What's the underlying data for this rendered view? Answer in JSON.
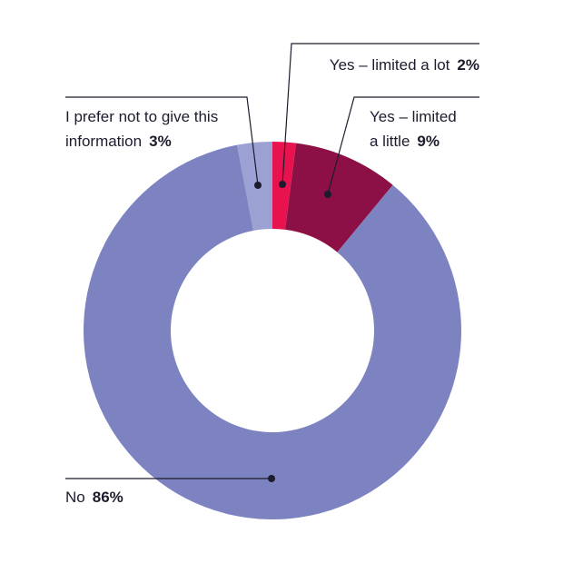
{
  "chart_data": {
    "type": "pie",
    "title": "",
    "donut": true,
    "legend": "none",
    "slices": [
      {
        "label": "Yes – limited a lot",
        "value": 2,
        "value_label": "2%",
        "color": "#e8124f"
      },
      {
        "label": "Yes – limited a little",
        "value": 9,
        "value_label": "9%",
        "color": "#8c1046"
      },
      {
        "label": "No",
        "value": 86,
        "value_label": "86%",
        "color": "#7c83c0"
      },
      {
        "label": "I prefer not to give this information",
        "value": 3,
        "value_label": "3%",
        "color": "#9ca1d3"
      }
    ]
  },
  "labels": {
    "limited_a_lot": {
      "text": "Yes – limited a lot",
      "pct": "2%"
    },
    "limited_a_little": {
      "line1": "Yes – limited",
      "line2": "a little",
      "pct": "9%"
    },
    "prefer_not": {
      "line1": "I prefer not to give this",
      "line2": "information",
      "pct": "3%"
    },
    "no": {
      "text": "No",
      "pct": "86%"
    }
  }
}
